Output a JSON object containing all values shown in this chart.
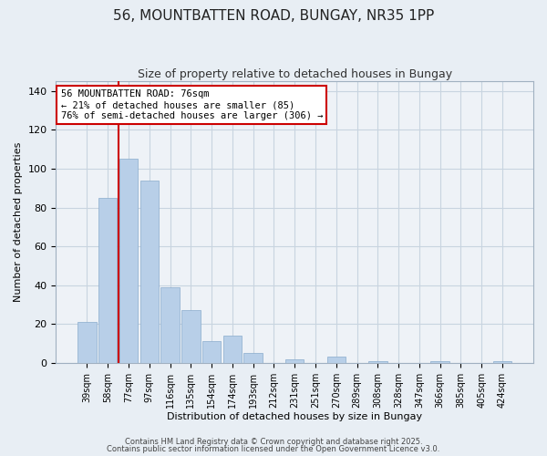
{
  "title": "56, MOUNTBATTEN ROAD, BUNGAY, NR35 1PP",
  "subtitle": "Size of property relative to detached houses in Bungay",
  "xlabel": "Distribution of detached houses by size in Bungay",
  "ylabel": "Number of detached properties",
  "categories": [
    "39sqm",
    "58sqm",
    "77sqm",
    "97sqm",
    "116sqm",
    "135sqm",
    "154sqm",
    "174sqm",
    "193sqm",
    "212sqm",
    "231sqm",
    "251sqm",
    "270sqm",
    "289sqm",
    "308sqm",
    "328sqm",
    "347sqm",
    "366sqm",
    "385sqm",
    "405sqm",
    "424sqm"
  ],
  "values": [
    21,
    85,
    105,
    94,
    39,
    27,
    11,
    14,
    5,
    0,
    2,
    0,
    3,
    0,
    1,
    0,
    0,
    1,
    0,
    0,
    1
  ],
  "bar_color": "#b8cfe8",
  "vline_index": 2,
  "vline_color": "#cc0000",
  "ylim": [
    0,
    145
  ],
  "yticks": [
    0,
    20,
    40,
    60,
    80,
    100,
    120,
    140
  ],
  "annotation_title": "56 MOUNTBATTEN ROAD: 76sqm",
  "annotation_line1": "← 21% of detached houses are smaller (85)",
  "annotation_line2": "76% of semi-detached houses are larger (306) →",
  "footer1": "Contains HM Land Registry data © Crown copyright and database right 2025.",
  "footer2": "Contains public sector information licensed under the Open Government Licence v3.0.",
  "background_color": "#e8eef4",
  "plot_background_color": "#eef2f7",
  "grid_color": "#c8d4e0",
  "title_fontsize": 11,
  "subtitle_fontsize": 9
}
